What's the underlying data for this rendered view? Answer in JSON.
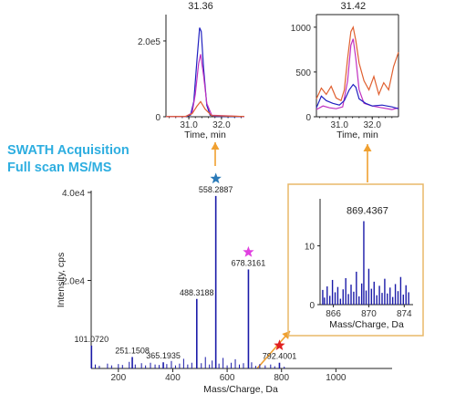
{
  "heading": {
    "line1": "SWATH Acquisition",
    "line2": "Full scan MS/MS",
    "color": "#2eaee0"
  },
  "colors": {
    "spectrum": "#1a1aa8",
    "arrow": "#f0a030",
    "inset_frame": "#e8b868",
    "blue": "#2020c0",
    "magenta": "#c030c0",
    "orange": "#e06030",
    "star_blue": "#2a7ab8",
    "star_magenta": "#e040e0",
    "star_red": "#e02020"
  },
  "chart_data": [
    {
      "id": "main_spectrum",
      "type": "bar",
      "xlabel": "Mass/Charge, Da",
      "ylabel": "Intensity, cps",
      "xlim": [
        100,
        1200
      ],
      "ylim": [
        0,
        40000
      ],
      "xticks": [
        200,
        400,
        600,
        800,
        1000
      ],
      "yticks": [
        {
          "value": 40000,
          "label": "4.0e4"
        },
        {
          "value": 20000,
          "label": "2.0e4"
        }
      ],
      "peaks": [
        {
          "mz": 101.072,
          "intensity": 5200,
          "label": "101.0720"
        },
        {
          "mz": 251.1508,
          "intensity": 2600,
          "label": "251.1508"
        },
        {
          "mz": 365.1935,
          "intensity": 1400,
          "label": "365.1935"
        },
        {
          "mz": 488.3188,
          "intensity": 15800,
          "label": "488.3188"
        },
        {
          "mz": 558.2887,
          "intensity": 39200,
          "label": "558.2887",
          "marker": "star_blue"
        },
        {
          "mz": 678.3161,
          "intensity": 22500,
          "label": "678.3161",
          "marker": "star_magenta"
        },
        {
          "mz": 792.4001,
          "intensity": 1300,
          "label": "792.4001",
          "marker": "star_red"
        }
      ],
      "minor_peaks": [
        {
          "mz": 115,
          "intensity": 900
        },
        {
          "mz": 130,
          "intensity": 600
        },
        {
          "mz": 160,
          "intensity": 1100
        },
        {
          "mz": 175,
          "intensity": 700
        },
        {
          "mz": 200,
          "intensity": 1000
        },
        {
          "mz": 215,
          "intensity": 800
        },
        {
          "mz": 240,
          "intensity": 1500
        },
        {
          "mz": 262,
          "intensity": 900
        },
        {
          "mz": 285,
          "intensity": 1200
        },
        {
          "mz": 300,
          "intensity": 700
        },
        {
          "mz": 318,
          "intensity": 1300
        },
        {
          "mz": 335,
          "intensity": 900
        },
        {
          "mz": 350,
          "intensity": 800
        },
        {
          "mz": 378,
          "intensity": 1000
        },
        {
          "mz": 395,
          "intensity": 1700
        },
        {
          "mz": 410,
          "intensity": 700
        },
        {
          "mz": 425,
          "intensity": 1100
        },
        {
          "mz": 440,
          "intensity": 2200
        },
        {
          "mz": 455,
          "intensity": 900
        },
        {
          "mz": 470,
          "intensity": 1300
        },
        {
          "mz": 505,
          "intensity": 1200
        },
        {
          "mz": 520,
          "intensity": 2600
        },
        {
          "mz": 535,
          "intensity": 900
        },
        {
          "mz": 545,
          "intensity": 1800
        },
        {
          "mz": 570,
          "intensity": 1100
        },
        {
          "mz": 585,
          "intensity": 2400
        },
        {
          "mz": 600,
          "intensity": 700
        },
        {
          "mz": 615,
          "intensity": 1300
        },
        {
          "mz": 630,
          "intensity": 2100
        },
        {
          "mz": 645,
          "intensity": 900
        },
        {
          "mz": 660,
          "intensity": 1200
        },
        {
          "mz": 690,
          "intensity": 1400
        },
        {
          "mz": 705,
          "intensity": 600
        },
        {
          "mz": 720,
          "intensity": 1000
        },
        {
          "mz": 740,
          "intensity": 700
        },
        {
          "mz": 760,
          "intensity": 900
        },
        {
          "mz": 775,
          "intensity": 500
        },
        {
          "mz": 810,
          "intensity": 400
        }
      ]
    },
    {
      "id": "xic_left",
      "type": "line",
      "title": "31.36",
      "xlabel": "Time, min",
      "xlim": [
        30.3,
        32.7
      ],
      "ylim": [
        0,
        260000
      ],
      "xticks": [
        {
          "value": 31.0,
          "label": "31.0"
        },
        {
          "value": 32.0,
          "label": "32.0"
        }
      ],
      "yticks": [
        {
          "value": 200000,
          "label": "2.0e5"
        },
        {
          "value": 0,
          "label": "0"
        }
      ],
      "series": [
        {
          "color": "blue",
          "x": [
            30.3,
            30.9,
            31.05,
            31.15,
            31.25,
            31.33,
            31.38,
            31.45,
            31.55,
            31.65,
            31.8,
            32.7
          ],
          "y": [
            200,
            500,
            4000,
            40000,
            150000,
            235000,
            225000,
            130000,
            30000,
            4000,
            800,
            300
          ]
        },
        {
          "color": "magenta",
          "x": [
            30.3,
            30.9,
            31.1,
            31.2,
            31.3,
            31.36,
            31.45,
            31.55,
            31.7,
            32.7
          ],
          "y": [
            300,
            600,
            10000,
            60000,
            140000,
            165000,
            110000,
            35000,
            4000,
            400
          ]
        },
        {
          "color": "orange",
          "x": [
            30.3,
            30.9,
            31.1,
            31.25,
            31.36,
            31.5,
            31.7,
            32.7
          ],
          "y": [
            500,
            900,
            8000,
            28000,
            40000,
            20000,
            3000,
            800
          ]
        }
      ]
    },
    {
      "id": "xic_right",
      "type": "line",
      "title": "31.42",
      "xlabel": "Time, min",
      "xlim": [
        30.3,
        32.8
      ],
      "ylim": [
        0,
        1100
      ],
      "xticks": [
        {
          "value": 31.0,
          "label": "31.0"
        },
        {
          "value": 32.0,
          "label": "32.0"
        }
      ],
      "yticks": [
        {
          "value": 1000,
          "label": "1000"
        },
        {
          "value": 500,
          "label": "500"
        },
        {
          "value": 0,
          "label": "0"
        }
      ],
      "series": [
        {
          "color": "orange",
          "x": [
            30.3,
            30.45,
            30.6,
            30.75,
            30.9,
            31.05,
            31.15,
            31.25,
            31.35,
            31.42,
            31.5,
            31.6,
            31.75,
            31.9,
            32.05,
            32.2,
            32.35,
            32.5,
            32.65,
            32.8
          ],
          "y": [
            200,
            320,
            250,
            340,
            210,
            180,
            300,
            650,
            950,
            1000,
            850,
            600,
            400,
            300,
            450,
            250,
            380,
            300,
            560,
            720
          ]
        },
        {
          "color": "magenta",
          "x": [
            30.3,
            30.5,
            30.7,
            30.9,
            31.1,
            31.25,
            31.35,
            31.42,
            31.5,
            31.6,
            31.75,
            32.0,
            32.3,
            32.6,
            32.8
          ],
          "y": [
            80,
            120,
            100,
            90,
            110,
            400,
            800,
            870,
            650,
            300,
            150,
            120,
            100,
            80,
            100
          ]
        },
        {
          "color": "blue",
          "x": [
            30.3,
            30.45,
            30.6,
            30.8,
            31.0,
            31.15,
            31.3,
            31.42,
            31.5,
            31.6,
            31.8,
            32.0,
            32.3,
            32.6,
            32.8
          ],
          "y": [
            100,
            230,
            180,
            150,
            130,
            180,
            300,
            360,
            330,
            200,
            150,
            120,
            130,
            110,
            90
          ]
        }
      ]
    },
    {
      "id": "zoom_inset",
      "type": "bar",
      "title": "869.4367",
      "xlabel": "Mass/Charge, Da",
      "xlim": [
        864.5,
        875
      ],
      "ylim": [
        0,
        18
      ],
      "xticks": [
        {
          "value": 866,
          "label": "866"
        },
        {
          "value": 870,
          "label": "870"
        },
        {
          "value": 874,
          "label": "874"
        }
      ],
      "yticks": [
        {
          "value": 10,
          "label": "10"
        },
        {
          "value": 0,
          "label": "0"
        }
      ],
      "peaks": [
        {
          "mz": 869.4367,
          "intensity": 14.2
        },
        {
          "mz": 864.8,
          "intensity": 2.5
        },
        {
          "mz": 865.0,
          "intensity": 1.2
        },
        {
          "mz": 865.3,
          "intensity": 3.1
        },
        {
          "mz": 865.6,
          "intensity": 1.5
        },
        {
          "mz": 865.9,
          "intensity": 4.2
        },
        {
          "mz": 866.2,
          "intensity": 2.1
        },
        {
          "mz": 866.5,
          "intensity": 3.0
        },
        {
          "mz": 866.8,
          "intensity": 1.0
        },
        {
          "mz": 867.1,
          "intensity": 2.6
        },
        {
          "mz": 867.4,
          "intensity": 4.5
        },
        {
          "mz": 867.7,
          "intensity": 1.8
        },
        {
          "mz": 868.0,
          "intensity": 3.4
        },
        {
          "mz": 868.3,
          "intensity": 2.2
        },
        {
          "mz": 868.6,
          "intensity": 5.6
        },
        {
          "mz": 868.9,
          "intensity": 1.4
        },
        {
          "mz": 869.2,
          "intensity": 3.6
        },
        {
          "mz": 869.7,
          "intensity": 2.4
        },
        {
          "mz": 870.0,
          "intensity": 6.1
        },
        {
          "mz": 870.3,
          "intensity": 2.7
        },
        {
          "mz": 870.6,
          "intensity": 3.9
        },
        {
          "mz": 870.9,
          "intensity": 1.6
        },
        {
          "mz": 871.2,
          "intensity": 3.2
        },
        {
          "mz": 871.5,
          "intensity": 2.0
        },
        {
          "mz": 871.8,
          "intensity": 4.4
        },
        {
          "mz": 872.1,
          "intensity": 1.9
        },
        {
          "mz": 872.4,
          "intensity": 2.9
        },
        {
          "mz": 872.7,
          "intensity": 1.3
        },
        {
          "mz": 873.0,
          "intensity": 3.5
        },
        {
          "mz": 873.3,
          "intensity": 2.3
        },
        {
          "mz": 873.6,
          "intensity": 4.7
        },
        {
          "mz": 873.9,
          "intensity": 1.7
        },
        {
          "mz": 874.2,
          "intensity": 3.3
        },
        {
          "mz": 874.5,
          "intensity": 2.1
        }
      ]
    }
  ]
}
